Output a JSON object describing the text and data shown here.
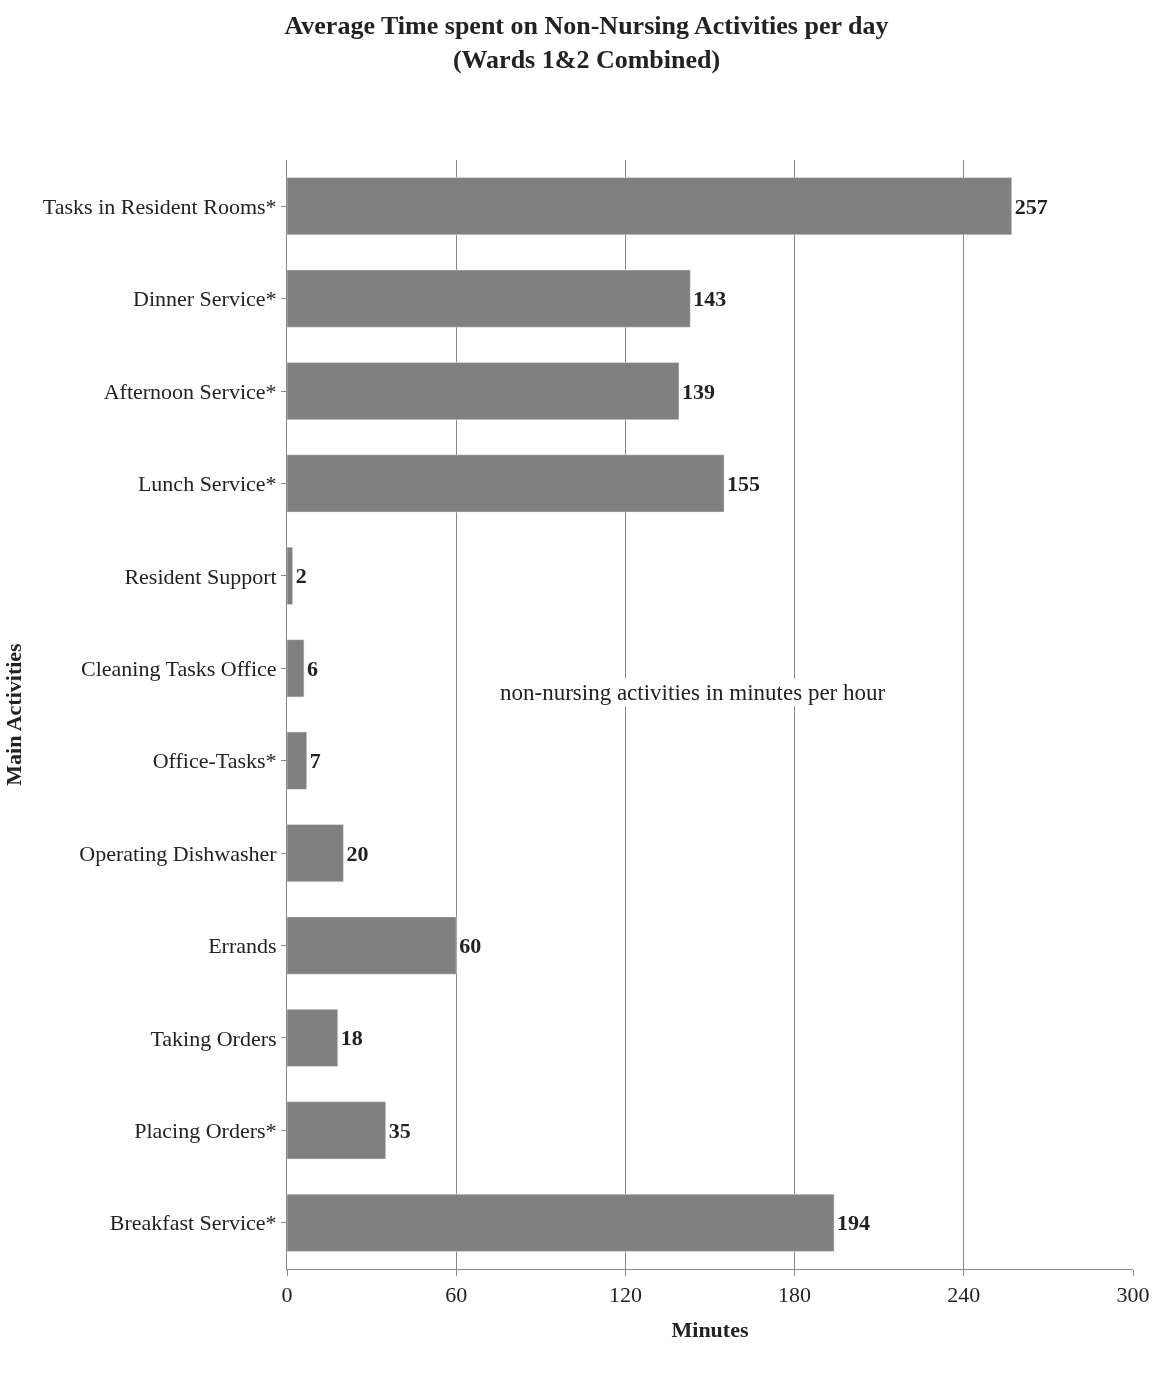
{
  "chart_data": {
    "type": "bar",
    "orientation": "horizontal",
    "title": "Average Time spent on Non-Nursing Activities per day\n(Wards 1&2 Combined)",
    "categories": [
      "Tasks in Resident Rooms*",
      "Dinner Service*",
      "Afternoon Service*",
      "Lunch Service*",
      "Resident Support",
      "Cleaning Tasks Office",
      "Office-Tasks*",
      "Operating Dishwasher",
      "Errands",
      "Taking Orders",
      "Placing Orders*",
      "Breakfast Service*"
    ],
    "values": [
      257,
      143,
      139,
      155,
      2,
      6,
      7,
      20,
      60,
      18,
      35,
      194
    ],
    "color": "#808080",
    "xlim": [
      0,
      300
    ],
    "xticks": [
      0,
      60,
      120,
      180,
      240,
      300
    ],
    "xlabel": "Minutes",
    "ylabel": "Main Activities",
    "annotations": [
      "non-nursing activities in minutes per hour"
    ],
    "data_labels": true,
    "grid": "x"
  }
}
